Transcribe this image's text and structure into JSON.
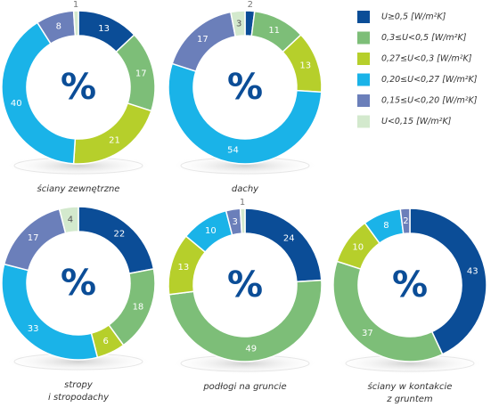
{
  "legend": {
    "categories": [
      "U≥0,5 [W/m²K]",
      "0,3≤U<0,5 [W/m²K]",
      "0,27≤U<0,3 [W/m²K]",
      "0,20≤U<0,27 [W/m²K]",
      "0,15≤U<0,20 [W/m²K]",
      "U<0,15 [W/m²K]"
    ],
    "colors": [
      "#0b4d97",
      "#7dbe78",
      "#b6cf2b",
      "#1ab3e8",
      "#6b7fba",
      "#d3e9cd"
    ]
  },
  "chart_data": [
    {
      "type": "pie",
      "title": [
        "ściany zewnętrzne"
      ],
      "center_label": "%",
      "values": [
        13,
        17,
        21,
        40,
        8,
        1
      ]
    },
    {
      "type": "pie",
      "title": [
        "dachy"
      ],
      "center_label": "%",
      "values": [
        2,
        11,
        13,
        54,
        17,
        3
      ]
    },
    {
      "type": "pie",
      "title": [
        "stropy",
        "i stropodachy"
      ],
      "center_label": "%",
      "values": [
        22,
        18,
        6,
        33,
        17,
        4
      ]
    },
    {
      "type": "pie",
      "title": [
        "podłogi na gruncie"
      ],
      "center_label": "%",
      "values": [
        24,
        49,
        13,
        10,
        3,
        1
      ]
    },
    {
      "type": "pie",
      "title": [
        "ściany w kontakcie",
        "z gruntem"
      ],
      "center_label": "%",
      "values": [
        43,
        37,
        10,
        8,
        2,
        null
      ]
    }
  ]
}
